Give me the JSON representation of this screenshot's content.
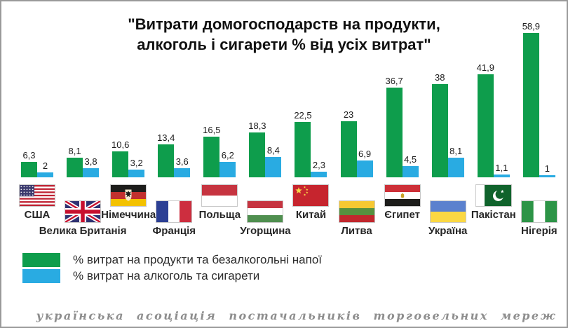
{
  "title": {
    "line1": "\"Витрати домогосподарств на продукти,",
    "line2": "алкоголь і сигарети % від усіх витрат\""
  },
  "chart_data": {
    "type": "bar",
    "categories": [
      "США",
      "Велика Британія",
      "Німеччина",
      "Франція",
      "Польща",
      "Угорщина",
      "Китай",
      "Литва",
      "Єгипет",
      "Україна",
      "Пакістан",
      "Нігерія"
    ],
    "flags": [
      "us",
      "gb",
      "de",
      "fr",
      "pl",
      "hu",
      "cn",
      "lt",
      "eg",
      "ua",
      "pk",
      "ng"
    ],
    "series": [
      {
        "name": "% витрат на продукти та безалкогольні напої",
        "color": "#0e9d4c",
        "values": [
          6.3,
          8.1,
          10.6,
          13.4,
          16.5,
          18.3,
          22.5,
          23,
          36.7,
          38,
          41.9,
          58.9
        ],
        "labels": [
          "6,3",
          "8,1",
          "10,6",
          "13,4",
          "16,5",
          "18,3",
          "22,5",
          "23",
          "36,7",
          "38",
          "41,9",
          "58,9"
        ]
      },
      {
        "name": "% витрат на алкоголь та сигарети",
        "color": "#29abe2",
        "values": [
          2,
          3.8,
          3.2,
          3.6,
          6.2,
          8.4,
          2.3,
          6.9,
          4.5,
          8.1,
          1.1,
          1
        ],
        "labels": [
          "2",
          "3,8",
          "3,2",
          "3,6",
          "6,2",
          "8,4",
          "2,3",
          "6,9",
          "4,5",
          "8,1",
          "1,1",
          "1"
        ]
      }
    ],
    "ylim": [
      0,
      60
    ],
    "grid": false,
    "axes_shown": false,
    "value_labels_shown": true,
    "legend_position": "bottom-left",
    "title": "\"Витрати домогосподарств на продукти, алкоголь і сигарети % від усіх витрат\""
  },
  "legend": {
    "items": [
      {
        "label": "% витрат на продукти та безалкогольні напої",
        "color": "#0e9d4c"
      },
      {
        "label": "% витрат на алкоголь та сигарети",
        "color": "#29abe2"
      }
    ]
  },
  "footer": {
    "text": "українська асоціація постачальників торговельних мереж"
  }
}
